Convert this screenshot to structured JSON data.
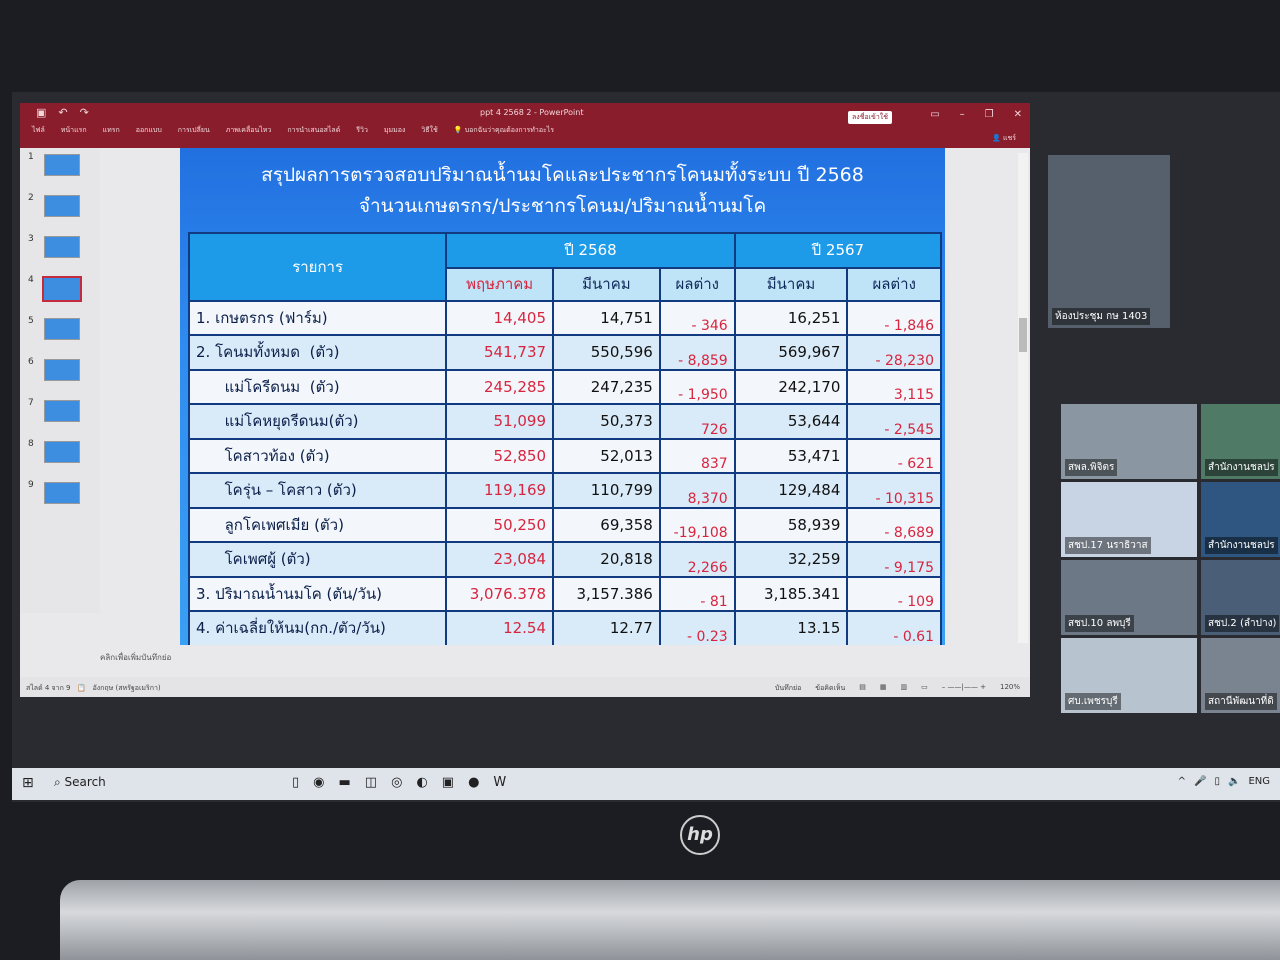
{
  "window": {
    "title": "ppt 4 2568 2 - PowerPoint",
    "share": "ลงชื่อเข้าใช้",
    "user": "แชร์",
    "quick_access": [
      "save-icon",
      "undo-icon",
      "redo-icon"
    ]
  },
  "ribbon": [
    "ไฟล์",
    "หน้าแรก",
    "แทรก",
    "ออกแบบ",
    "การเปลี่ยน",
    "ภาพเคลื่อนไหว",
    "การนำเสนอสไลด์",
    "รีวิว",
    "มุมมอง",
    "วิธีใช้",
    "บอกฉันว่าคุณต้องการทำอะไร"
  ],
  "thumbnails": [
    "1",
    "2",
    "3",
    "4",
    "5",
    "6",
    "7",
    "8",
    "9"
  ],
  "selected_slide": 4,
  "slide": {
    "title1": "สรุปผลการตรวจสอบปริมาณน้ำนมโคและประชากรโคนมทั้งระบบ ปี 2568",
    "title2": "จำนวนเกษตรกร/ประชากรโคนม/ปริมาณน้ำนมโค",
    "head": {
      "item": "รายการ",
      "y2568": "ปี 2568",
      "y2567": "ปี 2567",
      "may": "พฤษภาคม",
      "mar": "มีนาคม",
      "diff": "ผลต่าง",
      "mar67": "มีนาคม",
      "diff67": "ผลต่าง"
    },
    "rows": [
      [
        "1. เกษตรกร (ฟาร์ม)",
        "14,405",
        "14,751",
        "- 346",
        "16,251",
        "- 1,846"
      ],
      [
        "2. โคนมทั้งหมด  (ตัว)",
        "541,737",
        "550,596",
        "- 8,859",
        "569,967",
        "- 28,230"
      ],
      [
        "      แม่โครีดนม  (ตัว)",
        "245,285",
        "247,235",
        "- 1,950",
        "242,170",
        "3,115"
      ],
      [
        "      แม่โคหยุดรีดนม(ตัว)",
        "51,099",
        "50,373",
        "726",
        "53,644",
        "- 2,545"
      ],
      [
        "      โคสาวท้อง (ตัว)",
        "52,850",
        "52,013",
        "837",
        "53,471",
        "- 621"
      ],
      [
        "      โครุ่น – โคสาว (ตัว)",
        "119,169",
        "110,799",
        "8,370",
        "129,484",
        "- 10,315"
      ],
      [
        "      ลูกโคเพศเมีย (ตัว)",
        "50,250",
        "69,358",
        "-19,108",
        "58,939",
        "- 8,689"
      ],
      [
        "      โคเพศผู้ (ตัว)",
        "23,084",
        "20,818",
        "2,266",
        "32,259",
        "- 9,175"
      ],
      [
        "3. ปริมาณน้ำนมโค (ตัน/วัน)",
        "3,076.378",
        "3,157.386",
        "- 81",
        "3,185.341",
        "- 109"
      ],
      [
        "4. ค่าเฉลี่ยให้นม(กก./ตัว/วัน)",
        "12.54",
        "12.77",
        "- 0.23",
        "13.15",
        "- 0.61"
      ]
    ]
  },
  "notes_placeholder": "คลิกเพื่อเพิ่มบันทึกย่อ",
  "status": {
    "slide": "สไลด์ 4 จาก 9",
    "lang": "อังกฤษ (สหรัฐอเมริกา)",
    "notes": "บันทึกย่อ",
    "comments": "ข้อคิดเห็น",
    "zoom": "120%"
  },
  "video": {
    "main": "ห้องประชุม กษ 1403",
    "tiles": [
      "สพล.พิจิตร",
      "สำนักงานชลปร",
      "สชป.17 นราธิวาส",
      "สำนักงานชลปร",
      "สชป.10 ลพบุรี",
      "สชป.2 (ลำปาง)",
      "ศบ.เพชรบุรี",
      "สถานีพัฒนาที่ดิ"
    ]
  },
  "taskbar": {
    "search": "Search",
    "lang": "ENG"
  },
  "brand": "hp"
}
